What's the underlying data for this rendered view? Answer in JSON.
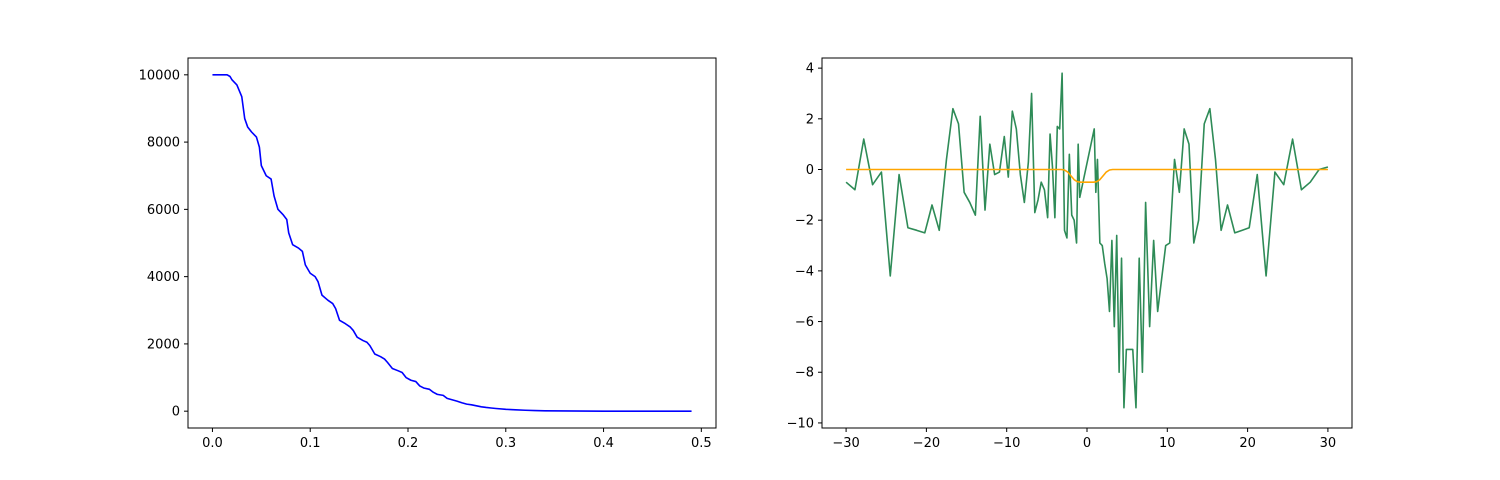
{
  "chart_data": [
    {
      "type": "line",
      "title": "",
      "xlabel": "",
      "ylabel": "",
      "xlim": [
        -0.025,
        0.515
      ],
      "ylim": [
        -500,
        10500
      ],
      "xticks": [
        0.0,
        0.1,
        0.2,
        0.3,
        0.4,
        0.5
      ],
      "xtick_labels": [
        "0.0",
        "0.1",
        "0.2",
        "0.3",
        "0.4",
        "0.5"
      ],
      "yticks": [
        0,
        2000,
        4000,
        6000,
        8000,
        10000
      ],
      "ytick_labels": [
        "0",
        "2000",
        "4000",
        "6000",
        "8000",
        "10000"
      ],
      "grid": false,
      "series": [
        {
          "color": "#0000ff",
          "x": [
            0.0,
            0.005,
            0.01,
            0.015,
            0.018,
            0.02,
            0.025,
            0.03,
            0.033,
            0.036,
            0.04,
            0.045,
            0.048,
            0.05,
            0.055,
            0.06,
            0.063,
            0.067,
            0.072,
            0.076,
            0.078,
            0.082,
            0.088,
            0.092,
            0.095,
            0.1,
            0.105,
            0.108,
            0.112,
            0.118,
            0.123,
            0.126,
            0.13,
            0.136,
            0.141,
            0.144,
            0.148,
            0.154,
            0.158,
            0.161,
            0.166,
            0.172,
            0.176,
            0.179,
            0.184,
            0.19,
            0.194,
            0.198,
            0.203,
            0.208,
            0.212,
            0.216,
            0.222,
            0.226,
            0.23,
            0.236,
            0.24,
            0.245,
            0.25,
            0.255,
            0.26,
            0.265,
            0.27,
            0.275,
            0.28,
            0.285,
            0.29,
            0.3,
            0.31,
            0.32,
            0.33,
            0.34,
            0.36,
            0.38,
            0.4,
            0.43,
            0.46,
            0.49
          ],
          "y": [
            10000,
            10000,
            10000,
            10000,
            9950,
            9850,
            9700,
            9350,
            8700,
            8450,
            8300,
            8150,
            7850,
            7300,
            7000,
            6900,
            6400,
            6000,
            5850,
            5700,
            5300,
            4950,
            4850,
            4750,
            4350,
            4100,
            4000,
            3850,
            3450,
            3300,
            3200,
            3050,
            2700,
            2600,
            2500,
            2400,
            2200,
            2100,
            2050,
            1950,
            1700,
            1620,
            1550,
            1450,
            1270,
            1200,
            1150,
            1000,
            920,
            880,
            750,
            690,
            650,
            560,
            500,
            470,
            380,
            340,
            300,
            250,
            210,
            190,
            160,
            130,
            110,
            95,
            80,
            55,
            40,
            28,
            18,
            12,
            6,
            3,
            1,
            0,
            0,
            0
          ]
        }
      ]
    },
    {
      "type": "line",
      "title": "",
      "xlabel": "",
      "ylabel": "",
      "xlim": [
        -33,
        33
      ],
      "ylim": [
        -10.2,
        4.4
      ],
      "xticks": [
        -30,
        -20,
        -10,
        0,
        10,
        20,
        30
      ],
      "xtick_labels": [
        "−30",
        "−20",
        "−10",
        "0",
        "10",
        "20",
        "30"
      ],
      "yticks": [
        -10,
        -8,
        -6,
        -4,
        -2,
        0,
        2,
        4
      ],
      "ytick_labels": [
        "−10",
        "−8",
        "−6",
        "−4",
        "−2",
        "0",
        "2",
        "4"
      ],
      "grid": false,
      "series": [
        {
          "color": "#2e8b57",
          "x": [
            -30,
            -28.9,
            -27.8,
            -26.7,
            -25.6,
            -24.5,
            -23.4,
            -22.3,
            -21.2,
            -20.2,
            -19.3,
            -18.4,
            -17.5,
            -16.7,
            -16.0,
            -15.3,
            -14.6,
            -13.9,
            -13.3,
            -12.7,
            -12.1,
            -11.5,
            -10.9,
            -10.3,
            -9.8,
            -9.3,
            -8.8,
            -8.3,
            -7.8,
            -7.3,
            -6.9,
            -6.5,
            -6.1,
            -5.7,
            -5.3,
            -4.9,
            -4.6,
            -4.3,
            -4.0,
            -3.7,
            -3.4,
            -3.1,
            -2.8,
            -2.5,
            -2.2,
            -1.9,
            -1.6,
            -1.3,
            -1.1,
            -0.9,
            0.9,
            1.1,
            1.3,
            1.6,
            1.9,
            2.2,
            2.5,
            2.8,
            3.1,
            3.4,
            3.7,
            4.0,
            4.3,
            4.6,
            4.9,
            5.3,
            5.7,
            6.1,
            6.5,
            6.9,
            7.3,
            7.8,
            8.3,
            8.8,
            9.3,
            9.8,
            10.3,
            10.9,
            11.5,
            12.1,
            12.7,
            13.3,
            13.9,
            14.6,
            15.3,
            16.0,
            16.7,
            17.5,
            18.4,
            19.3,
            20.2,
            21.2,
            22.3,
            23.4,
            24.5,
            25.6,
            26.7,
            27.8,
            28.9,
            30
          ],
          "y": [
            -0.5,
            -0.8,
            1.2,
            -0.6,
            -0.1,
            -4.2,
            -0.2,
            -2.3,
            -2.4,
            -2.5,
            -1.4,
            -2.4,
            0.4,
            2.4,
            1.8,
            -0.9,
            -1.3,
            -1.8,
            2.1,
            -1.6,
            1.0,
            -0.2,
            -0.1,
            1.3,
            -0.3,
            2.3,
            1.6,
            -0.2,
            -1.3,
            0.3,
            3.0,
            -1.7,
            -1.2,
            -0.5,
            -0.8,
            -1.9,
            1.4,
            0.1,
            -1.9,
            1.7,
            1.6,
            3.8,
            -2.4,
            -2.7,
            0.6,
            -1.8,
            -2.0,
            -2.9,
            1.0,
            -1.1,
            1.6,
            -0.9,
            0.4,
            -2.9,
            -3.0,
            -3.7,
            -4.3,
            -5.6,
            -2.8,
            -6.2,
            -2.6,
            -8.0,
            -3.5,
            -9.4,
            -7.1,
            -7.1,
            -7.1,
            -9.4,
            -3.5,
            -8.0,
            -1.3,
            -6.2,
            -2.8,
            -5.6,
            -4.3,
            -3.0,
            -2.9,
            0.4,
            -0.9,
            1.6,
            1.0,
            -2.9,
            -2.0,
            1.8,
            2.4,
            0.4,
            -2.4,
            -1.4,
            -2.5,
            -2.4,
            -2.3,
            -0.2,
            -4.2,
            -0.1,
            -0.6,
            1.2,
            -0.8,
            -0.5,
            0.0,
            0.1
          ]
        },
        {
          "color": "#ffa500",
          "x": [
            -30,
            -20,
            -10,
            -5,
            -3.2,
            -2.8,
            -2.4,
            -2.0,
            -1.6,
            -1.2,
            -0.8,
            -0.4,
            0,
            0.4,
            0.8,
            1.2,
            1.6,
            2.0,
            2.4,
            2.8,
            3.2,
            5,
            10,
            20,
            30
          ],
          "y": [
            0,
            0,
            0,
            0,
            0,
            -0.02,
            -0.1,
            -0.25,
            -0.4,
            -0.48,
            -0.5,
            -0.5,
            -0.5,
            -0.5,
            -0.5,
            -0.48,
            -0.4,
            -0.25,
            -0.1,
            -0.02,
            0,
            0,
            0,
            0,
            0
          ]
        }
      ]
    }
  ]
}
